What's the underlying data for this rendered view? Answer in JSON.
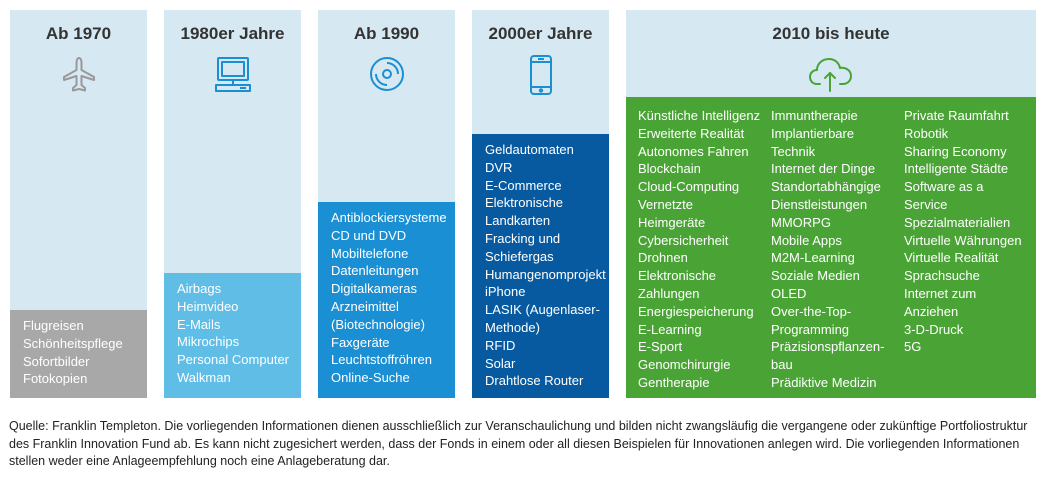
{
  "columns": [
    {
      "title": "Ab 1970",
      "icon": "airplane-icon",
      "items": [
        "Flugreisen",
        "Schönheitspflege",
        "Sofortbilder",
        "Fotokopien"
      ]
    },
    {
      "title": "1980er Jahre",
      "icon": "computer-icon",
      "items": [
        "Airbags",
        "Heimvideo",
        "E-Mails",
        "Mikrochips",
        "Personal Computer",
        "Walkman"
      ]
    },
    {
      "title": "Ab 1990",
      "icon": "cd-icon",
      "items": [
        "Antiblockiersysteme",
        "CD und DVD",
        "Mobiltelefone",
        "Datenleitungen",
        "Digitalkameras",
        "Arzneimittel",
        "(Biotechnologie)",
        "Faxgeräte",
        "Leuchtstoffröhren",
        "Online-Suche"
      ]
    },
    {
      "title": "2000er Jahre",
      "icon": "smartphone-icon",
      "items": [
        "Geldautomaten",
        "DVR",
        "E-Commerce",
        "Elektronische",
        "Landkarten",
        "Fracking und",
        "Schiefergas",
        "Humangenomprojekt",
        "iPhone",
        "LASIK (Augenlaser-",
        "Methode)",
        "RFID",
        "Solar",
        "Drahtlose Router"
      ]
    },
    {
      "title": "2010 bis heute",
      "icon": "cloud-upload-icon",
      "items_col1": [
        "Künstliche Intelligenz",
        "Erweiterte Realität",
        "Autonomes Fahren",
        "Blockchain",
        "Cloud-Computing",
        "Vernetzte",
        "Heimgeräte",
        "Cybersicherheit",
        "Drohnen",
        "Elektronische",
        "Zahlungen",
        "Energiespeicherung",
        "E-Learning",
        "E-Sport",
        "Genomchirurgie",
        "Gentherapie"
      ],
      "items_col2": [
        "Immuntherapie",
        "Implantierbare",
        "Technik",
        "Internet der Dinge",
        "Standortabhängige",
        "Dienstleistungen",
        "MMORPG",
        "Mobile Apps",
        "M2M-Learning",
        "Soziale Medien",
        "OLED",
        "Over-the-Top-",
        "Programming",
        "Präzisionspflanzen-",
        "bau",
        "Prädiktive Medizin"
      ],
      "items_col3": [
        "Private Raumfahrt",
        "Robotik",
        "Sharing Economy",
        "Intelligente Städte",
        "Software as a",
        "Service",
        "Spezialmaterialien",
        "Virtuelle Währungen",
        "Virtuelle Realität",
        "Sprachsuche",
        "Internet zum",
        "Anziehen",
        "3-D-Druck",
        "5G"
      ]
    }
  ],
  "footnote": "Quelle: Franklin Templeton. Die vorliegenden Informationen dienen ausschließlich zur Veranschaulichung und bilden nicht zwangsläufig die vergangene oder zukünftige Portfoliostruktur des Franklin Innovation Fund ab. Es kann nicht zugesichert werden, dass der Fonds in einem oder all diesen Beispielen für Innovationen anlegen wird. Die vorliegenden Informationen stellen weder eine Anlageempfehlung noch eine Anlageberatung dar.",
  "colors": {
    "panel_bg": "#d6e8f1",
    "gray": "#a8a8a8",
    "light_blue": "#60bde6",
    "mid_blue": "#1b8fd3",
    "dark_blue": "#075aa0",
    "green": "#4aa435",
    "icon": "#1b8fd3"
  }
}
